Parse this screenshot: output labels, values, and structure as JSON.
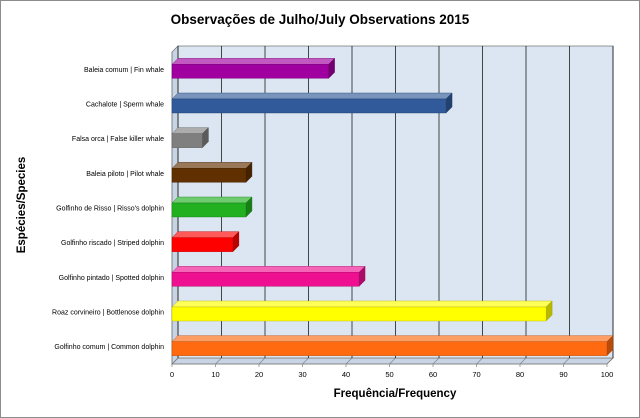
{
  "chart_data": {
    "type": "bar",
    "orientation": "horizontal",
    "title": "Observações de Julho/July Observations 2015",
    "xlabel": "Frequência/Frequency",
    "ylabel": "Espécies/Species",
    "xlim": [
      0,
      100
    ],
    "xticks": [
      "0",
      "10",
      "20",
      "30",
      "40",
      "50",
      "60",
      "70",
      "80",
      "90",
      "100"
    ],
    "grid": true,
    "legend": "none",
    "categories": [
      "Baleia comum | Fin whale",
      "Cachalote | Sperm whale",
      "Falsa orca | False killer whale",
      "Baleia piloto | Pilot whale",
      "Golfinho de Risso | Risso's dolphin",
      "Golfinho riscado | Striped dolphin",
      "Golfinho pintado | Spotted dolphin",
      "Roaz corvineiro | Bottlenose dolphin",
      "Golfinho comum | Common dolphin"
    ],
    "values": [
      36,
      63,
      7,
      17,
      17,
      14,
      43,
      86,
      100
    ],
    "colors": [
      "#a000a0",
      "#305a9a",
      "#7f7f7f",
      "#603000",
      "#22b020",
      "#ff0000",
      "#ee1090",
      "#ffff00",
      "#ff6a10"
    ]
  }
}
